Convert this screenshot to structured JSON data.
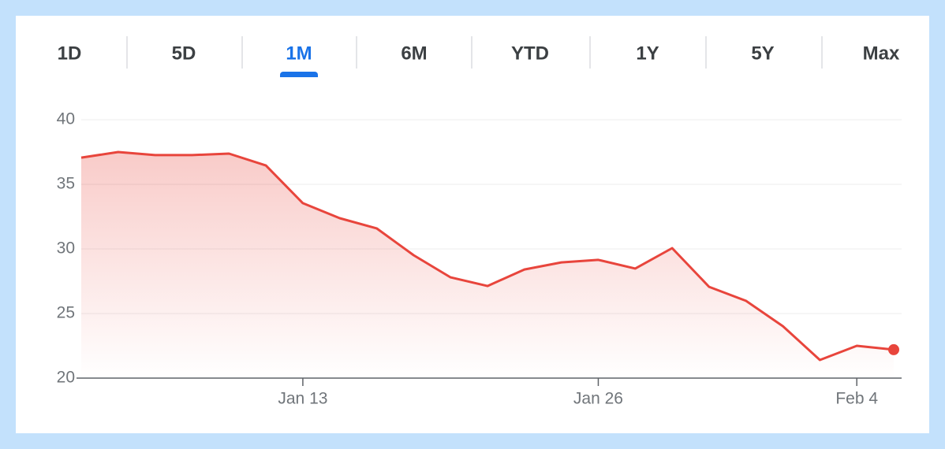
{
  "range_tabs": [
    "1D",
    "5D",
    "1M",
    "6M",
    "YTD",
    "1Y",
    "5Y",
    "Max"
  ],
  "selected_tab": 2,
  "chart_data": {
    "type": "line",
    "categories": [
      null,
      null,
      null,
      null,
      null,
      null,
      "Jan 13",
      null,
      null,
      null,
      null,
      null,
      null,
      null,
      "Jan 26",
      null,
      null,
      null,
      null,
      null,
      null,
      "Feb 4",
      null
    ],
    "values": [
      37.07,
      37.5,
      37.26,
      37.26,
      37.38,
      36.46,
      33.54,
      32.38,
      31.59,
      29.51,
      27.8,
      27.13,
      28.41,
      28.96,
      29.15,
      28.48,
      30.06,
      27.07,
      25.98,
      24.02,
      21.4,
      22.5,
      22.2
    ],
    "color": "#e8453c",
    "ylim": [
      20,
      40
    ],
    "yticks": [
      20,
      25,
      30,
      35,
      40
    ],
    "grid": true
  }
}
